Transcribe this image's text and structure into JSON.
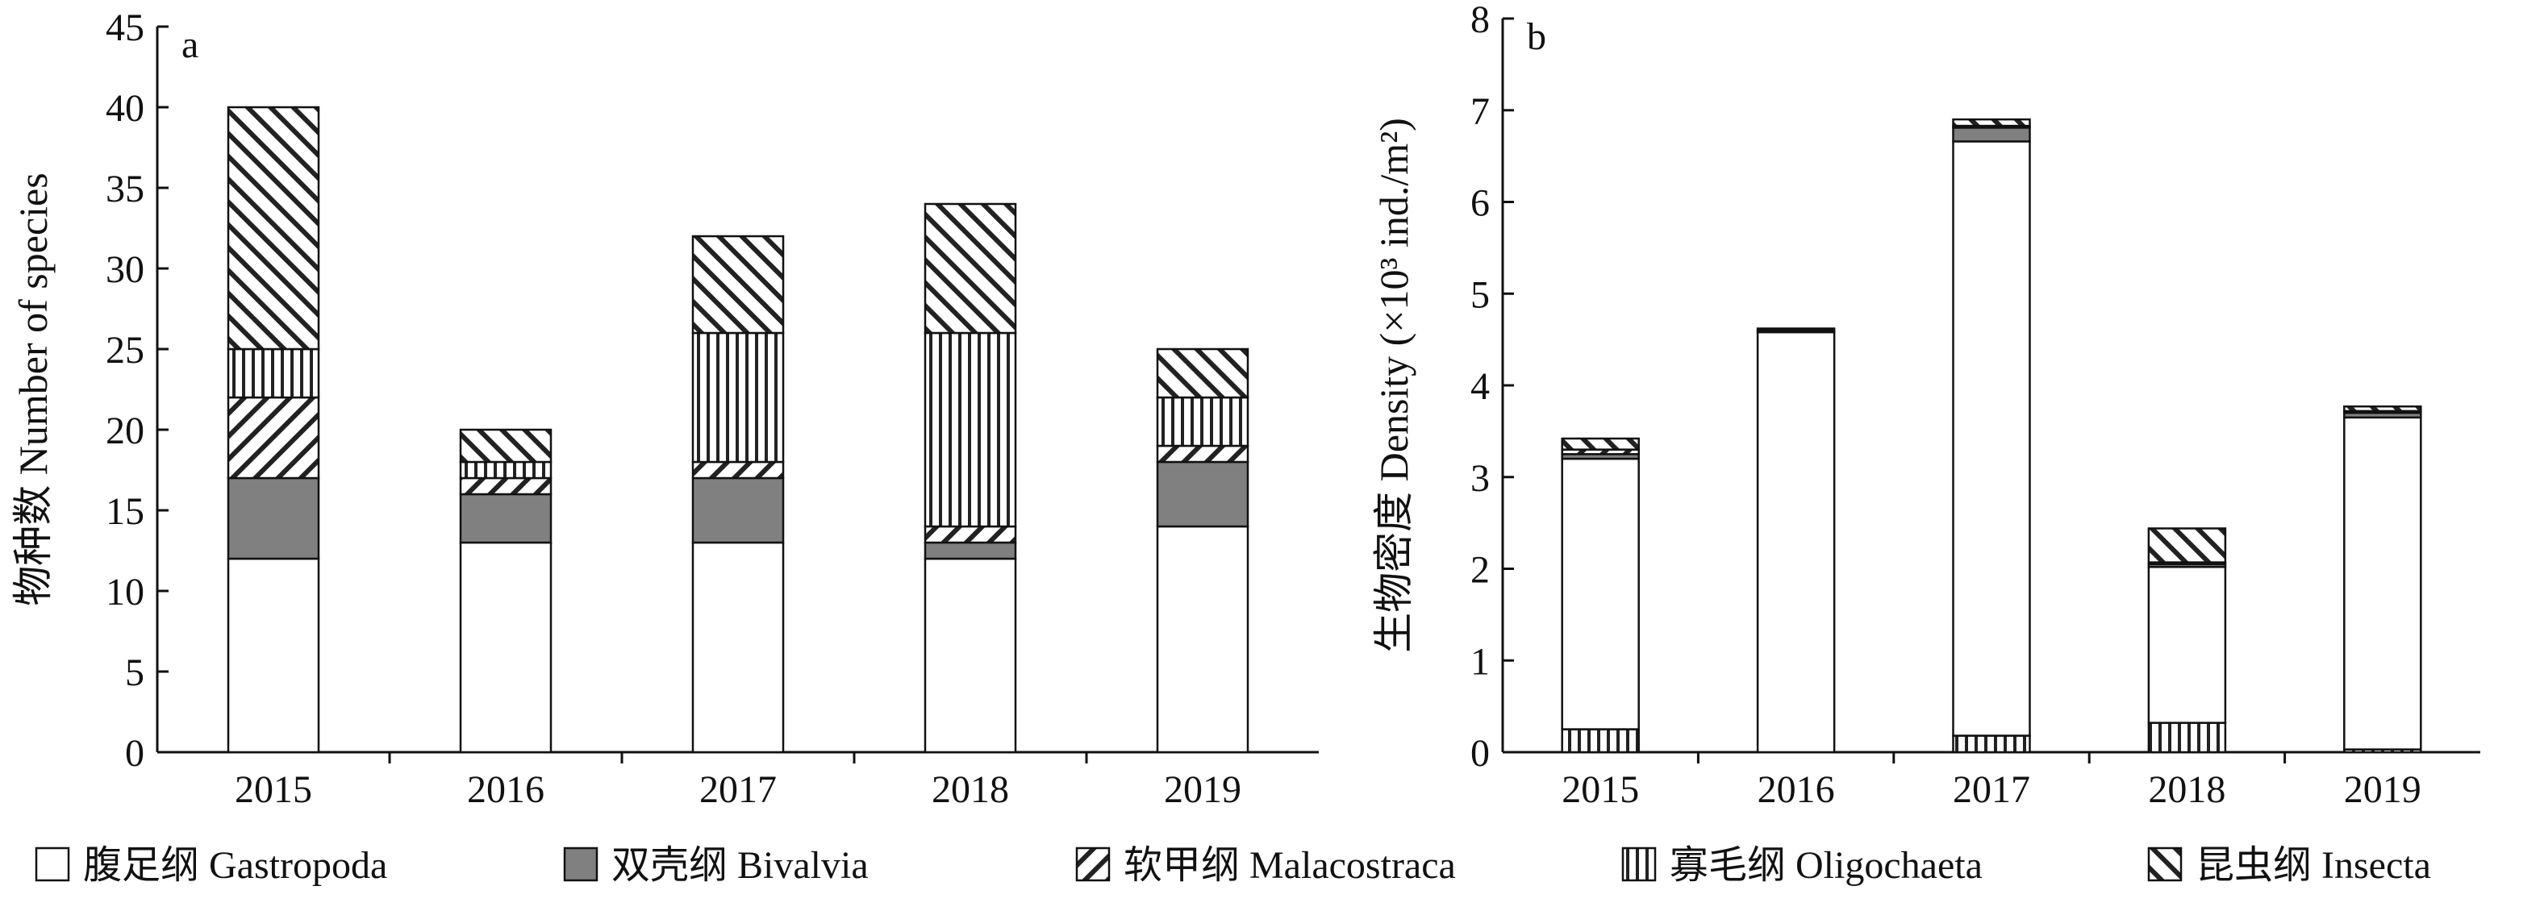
{
  "chart_data": [
    {
      "type": "bar",
      "stacked": true,
      "panel_label": "a",
      "ylabel": "物种数 Number of species",
      "xlabel": "",
      "categories": [
        "2015",
        "2016",
        "2017",
        "2018",
        "2019"
      ],
      "ylim": [
        0,
        45
      ],
      "yticks": [
        0,
        5,
        10,
        15,
        20,
        25,
        30,
        35,
        40,
        45
      ],
      "series": [
        {
          "name": "腹足纲 Gastropoda",
          "values": [
            12,
            13,
            13,
            12,
            14
          ]
        },
        {
          "name": "双壳纲 Bivalvia",
          "values": [
            5,
            3,
            4,
            1,
            4
          ]
        },
        {
          "name": "软甲纲 Malacostraca",
          "values": [
            5,
            1,
            1,
            1,
            1
          ]
        },
        {
          "name": "寡毛纲 Oligochaeta",
          "values": [
            3,
            1,
            8,
            12,
            3
          ]
        },
        {
          "name": "昆虫纲 Insecta",
          "values": [
            15,
            2,
            6,
            8,
            3
          ]
        }
      ],
      "grid": false
    },
    {
      "type": "bar",
      "stacked": true,
      "panel_label": "b",
      "ylabel": "生物密度 Density (×10³ ind./m²)",
      "xlabel": "",
      "categories": [
        "2015",
        "2016",
        "2017",
        "2018",
        "2019"
      ],
      "ylim": [
        0,
        8
      ],
      "yticks": [
        0,
        1,
        2,
        3,
        4,
        5,
        6,
        7,
        8
      ],
      "series": [
        {
          "name": "寡毛纲 Oligochaeta",
          "values": [
            0.25,
            0.0,
            0.18,
            0.32,
            0.03
          ]
        },
        {
          "name": "腹足纲 Gastropoda",
          "values": [
            2.95,
            4.58,
            6.48,
            1.7,
            3.62
          ]
        },
        {
          "name": "双壳纲 Bivalvia",
          "values": [
            0.05,
            0.0,
            0.15,
            0.03,
            0.05
          ]
        },
        {
          "name": "软甲纲 Malacostraca",
          "values": [
            0.05,
            0.02,
            0.02,
            0.02,
            0.02
          ]
        },
        {
          "name": "昆虫纲 Insecta",
          "values": [
            0.12,
            0.02,
            0.07,
            0.37,
            0.05
          ]
        }
      ],
      "grid": false
    }
  ],
  "legend": {
    "placement": "bottom",
    "items": [
      {
        "key": "gastropoda",
        "label": "腹足纲 Gastropoda"
      },
      {
        "key": "bivalvia",
        "label": "双壳纲 Bivalvia"
      },
      {
        "key": "malacostraca",
        "label": "软甲纲 Malacostraca"
      },
      {
        "key": "oligochaeta",
        "label": "寡毛纲 Oligochaeta"
      },
      {
        "key": "insecta",
        "label": "昆虫纲 Insecta"
      }
    ]
  }
}
